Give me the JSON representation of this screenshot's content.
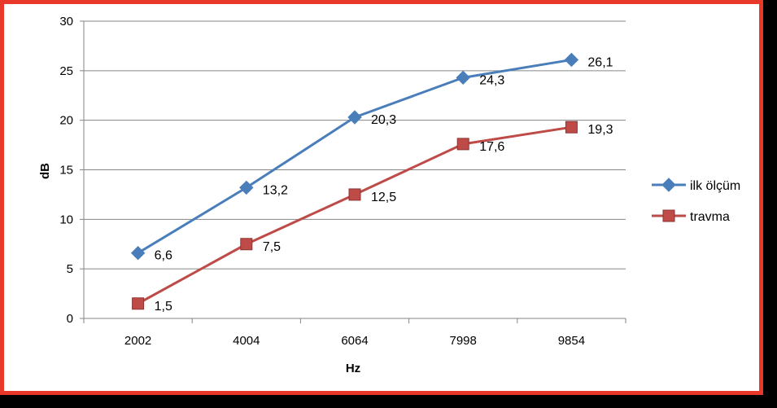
{
  "chart_data": {
    "type": "line",
    "categories": [
      "2002",
      "4004",
      "6064",
      "7998",
      "9854"
    ],
    "series": [
      {
        "name": "ilk ölçüm",
        "values": [
          6.6,
          13.2,
          20.3,
          24.3,
          26.1
        ],
        "labels": [
          "6,6",
          "13,2",
          "20,3",
          "24,3",
          "26,1"
        ],
        "color": "#4a7ebb",
        "marker": "diamond"
      },
      {
        "name": "travma",
        "values": [
          1.5,
          7.5,
          12.5,
          17.6,
          19.3
        ],
        "labels": [
          "1,5",
          "7,5",
          "12,5",
          "17,6",
          "19,3"
        ],
        "color": "#be4b48",
        "marker": "square"
      }
    ],
    "xlabel": "Hz",
    "ylabel": "dB",
    "ylim": [
      0,
      30
    ],
    "yticks": [
      "0",
      "5",
      "10",
      "15",
      "20",
      "25",
      "30"
    ],
    "grid": "horizontal",
    "legend_position": "right"
  },
  "colors": {
    "border": "#e8382a",
    "background": "#000000",
    "grid": "#868686"
  }
}
